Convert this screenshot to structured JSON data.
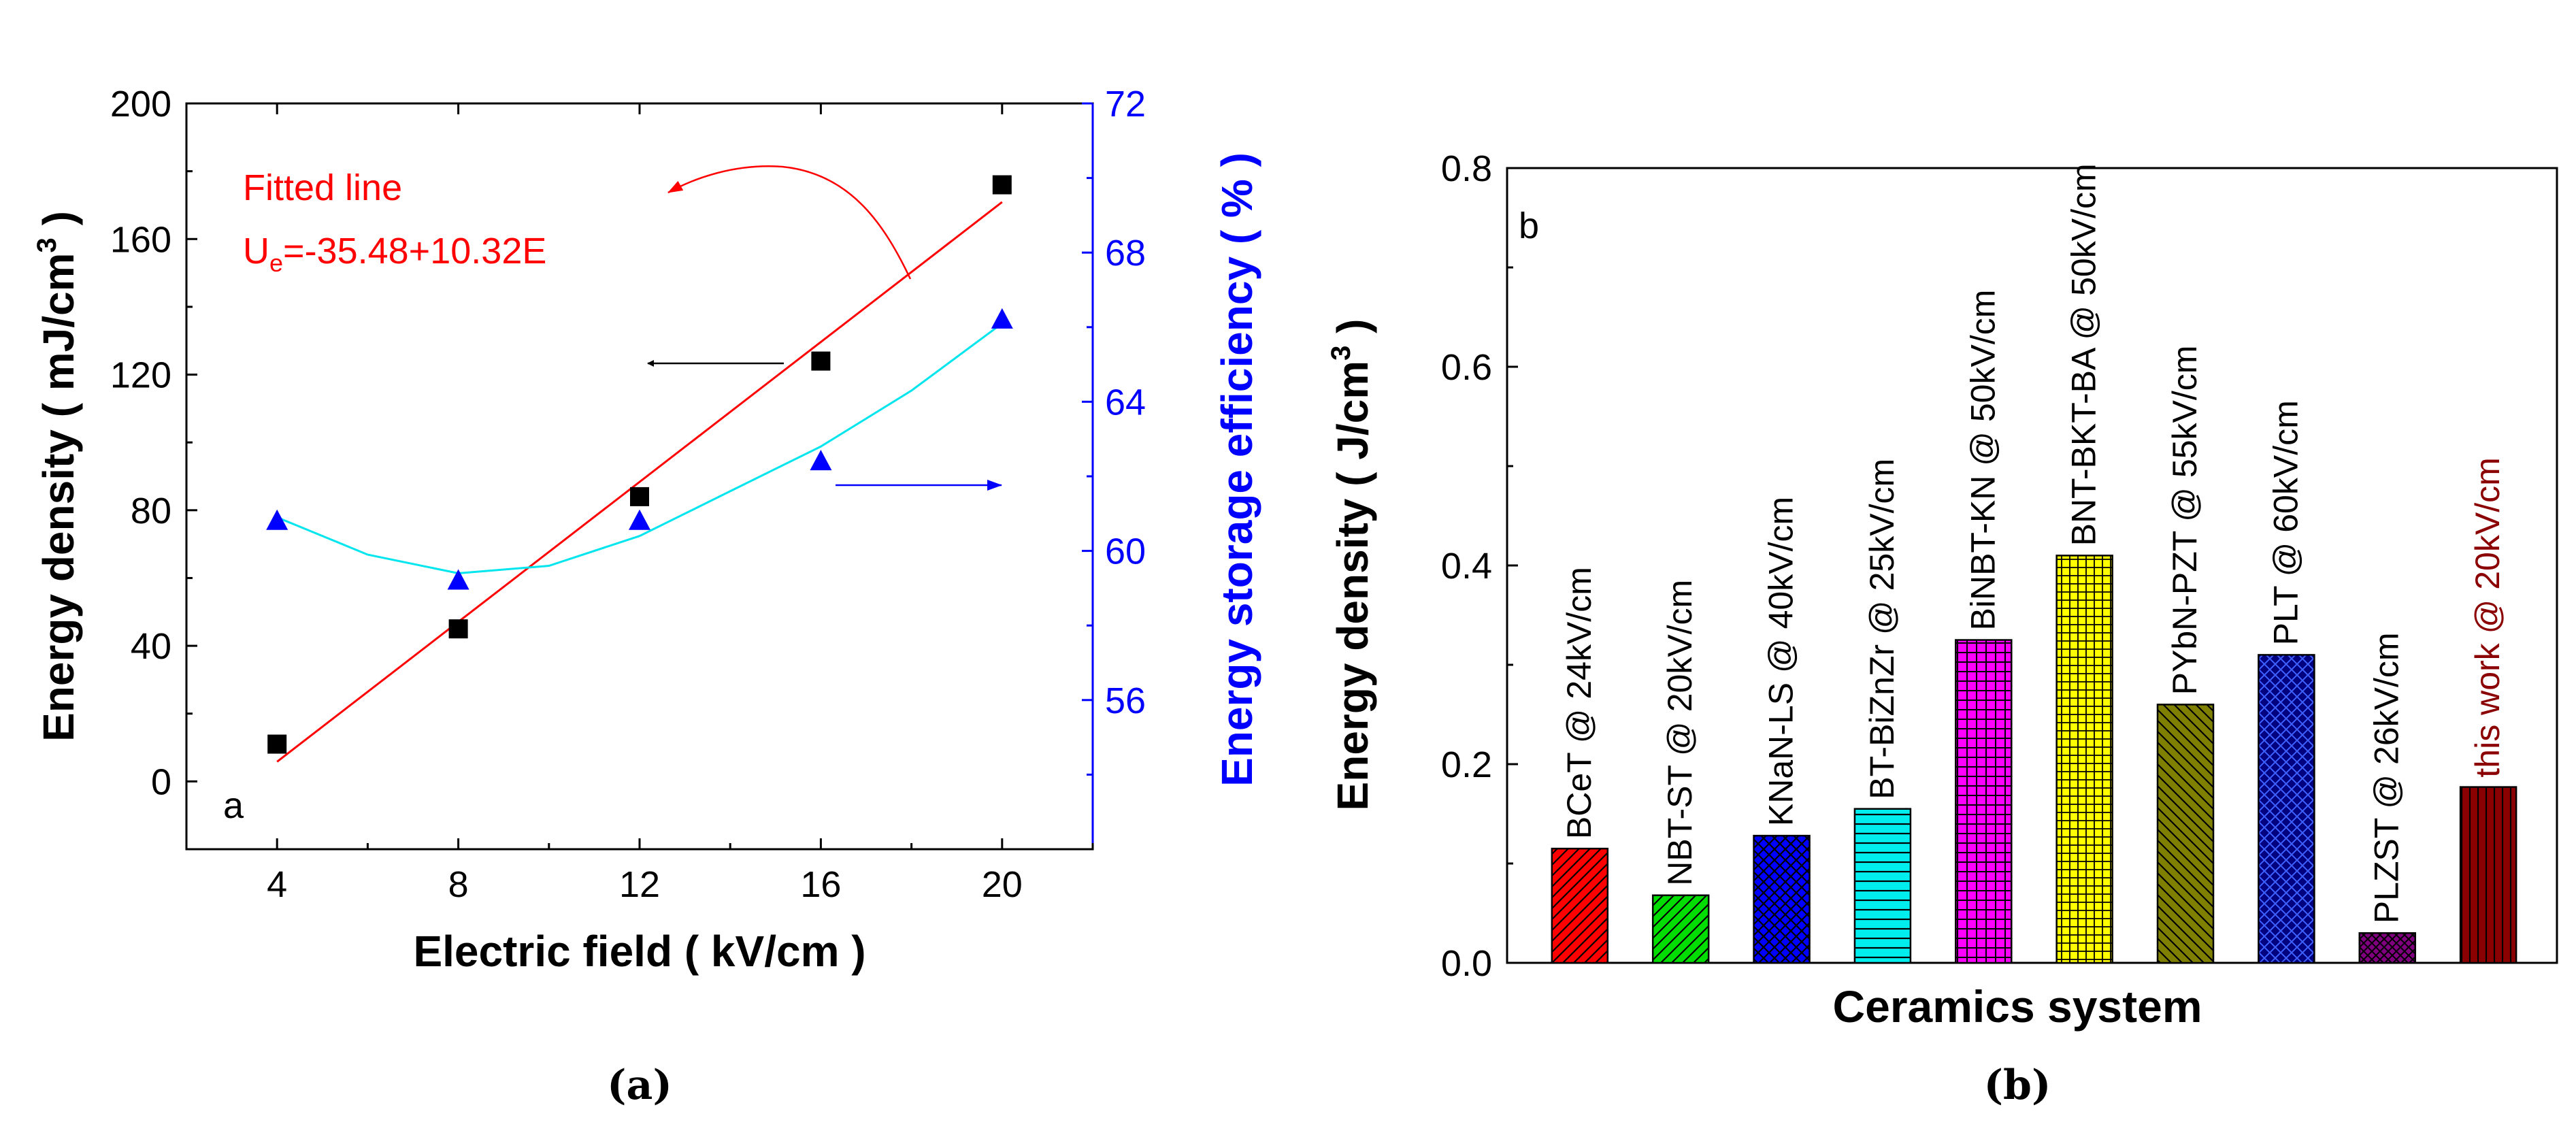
{
  "chart_data": [
    {
      "type": "scatter",
      "panel_letter": "a",
      "xlabel": "Electric field ( kV/cm )",
      "ylabel": "Energy density ( mJ/cm",
      "ylabel_sup": "3",
      "ylabel_tail": " )",
      "y2label": "Energy storage efficiency ( % )",
      "xlim": [
        2,
        22
      ],
      "ylim": [
        -20,
        200
      ],
      "y2lim": [
        52,
        72
      ],
      "xticks": [
        4,
        8,
        12,
        16,
        20
      ],
      "yticks": [
        0,
        40,
        80,
        120,
        160,
        200
      ],
      "y2ticks": [
        56,
        60,
        64,
        68,
        72
      ],
      "series": [
        {
          "axis": "left",
          "marker": "square",
          "color": "#000000",
          "x": [
            4,
            8,
            12,
            16,
            20
          ],
          "y": [
            11,
            45,
            84,
            124,
            176
          ]
        },
        {
          "axis": "right",
          "marker": "triangle",
          "color": "#0000ff",
          "x": [
            4,
            8,
            12,
            16,
            20
          ],
          "y": [
            60.8,
            59.2,
            60.8,
            62.4,
            66.2
          ]
        }
      ],
      "fit_line": {
        "color": "#ff0000",
        "x": [
          4,
          20
        ],
        "y": [
          5.8,
          170.9
        ]
      },
      "fit_curve": {
        "color": "#00e5ee",
        "x": [
          4,
          6,
          8,
          10,
          12,
          14,
          16,
          18,
          20
        ],
        "y": [
          60.9,
          59.9,
          59.4,
          59.6,
          60.4,
          61.6,
          62.8,
          64.3,
          66.1
        ]
      },
      "annotation": {
        "line1": "Fitted line",
        "eq_prefix": "U",
        "eq_sub": "e",
        "eq_rest": "=-35.48+10.32E",
        "color": "#ff0000"
      },
      "caption": "(a)"
    },
    {
      "type": "bar",
      "panel_letter": "b",
      "xlabel": "Ceramics system",
      "ylabel": "Energy density ( J/cm",
      "ylabel_sup": "3",
      "ylabel_tail": " )",
      "ylim": [
        0,
        0.8
      ],
      "yticks": [
        "0.0",
        "0.2",
        "0.4",
        "0.6",
        "0.8"
      ],
      "categories": [
        "BCeT @ 24kV/cm",
        "NBT-ST @ 20kV/cm",
        "KNaN-LS @ 40kV/cm",
        "BT-BiZnZr @ 25kV/cm",
        "BiNBT-KN @ 50kV/cm",
        "BNT-BKT-BA @ 50kV/cm",
        "PYbN-PZT @ 55kV/cm",
        "PLT @ 60kV/cm",
        "PLZST @ 26kV/cm",
        "this work @ 20kV/cm"
      ],
      "values": [
        0.115,
        0.068,
        0.128,
        0.155,
        0.325,
        0.41,
        0.26,
        0.31,
        0.03,
        0.177
      ],
      "colors": [
        "#ff0000",
        "#00dd00",
        "#0000ff",
        "#00eeee",
        "#ff00ff",
        "#ffff00",
        "#808000",
        "#000080",
        "#800080",
        "#8b0000"
      ],
      "label_colors": [
        "#000000",
        "#000000",
        "#000000",
        "#000000",
        "#000000",
        "#000000",
        "#000000",
        "#000000",
        "#000000",
        "#8b0000"
      ],
      "caption": "(b)"
    }
  ]
}
